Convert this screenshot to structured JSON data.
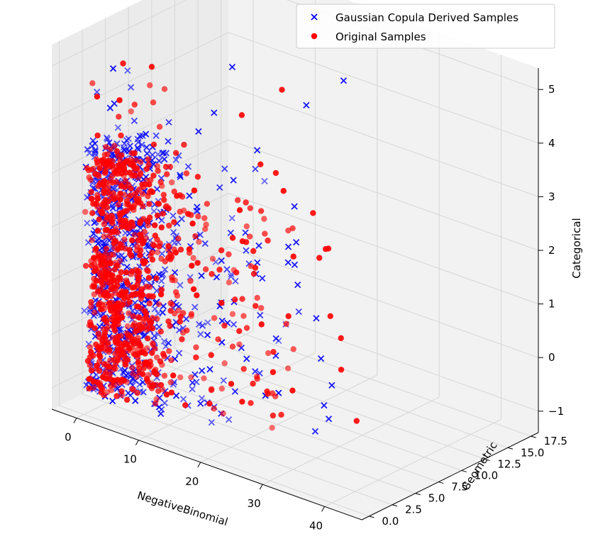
{
  "chart_data": {
    "type": "scatter",
    "projection": "3d",
    "grid": true,
    "legend_placement": "top-right",
    "xlabel": "NegativeBinomial",
    "ylabel": "Geometric",
    "zlabel": "Categorical",
    "xlim": [
      -4,
      46
    ],
    "ylim": [
      -0.8,
      18.3
    ],
    "zlim": [
      -1.4,
      5.4
    ],
    "x_ticks": [
      0,
      10,
      20,
      30,
      40
    ],
    "x_tick_labels": [
      "0",
      "10",
      "20",
      "30",
      "40"
    ],
    "y_ticks": [
      0,
      2.5,
      5,
      7.5,
      10,
      12.5,
      15,
      17.5
    ],
    "y_tick_labels": [
      "0.0",
      "2.5",
      "5.0",
      "7.5",
      "10.0",
      "12.5",
      "15.0",
      "17.5"
    ],
    "z_ticks": [
      -1,
      0,
      1,
      2,
      3,
      4,
      5
    ],
    "z_tick_labels": [
      "−1",
      "0",
      "1",
      "2",
      "3",
      "4",
      "5"
    ],
    "series": [
      {
        "name": "Gaussian Copula Derived Samples",
        "marker": "x",
        "color": "#0000ff",
        "distribution": {
          "x_range": [
            0,
            42
          ],
          "x_mode": 6,
          "y_range": [
            0,
            18
          ],
          "y_mode": 1,
          "z_range": [
            -1,
            5.3
          ]
        },
        "points": [
          [
            38,
            1,
            0
          ],
          [
            37,
            2,
            0.5
          ],
          [
            36,
            1.5,
            1
          ],
          [
            35,
            2.5,
            0
          ],
          [
            33,
            3,
            1.5
          ],
          [
            30,
            3,
            2
          ],
          [
            25,
            6,
            3
          ],
          [
            21,
            14,
            4.5
          ],
          [
            12,
            16,
            3.5
          ],
          [
            9,
            10,
            4.6
          ],
          [
            14,
            3,
            4.2
          ],
          [
            18,
            2,
            4.8
          ],
          [
            16,
            1.5,
            3
          ],
          [
            8,
            2,
            3.5
          ],
          [
            27,
            4,
            2.5
          ],
          [
            28,
            2,
            1
          ],
          [
            24,
            1.5,
            0.5
          ],
          [
            22,
            4,
            2
          ],
          [
            31,
            2,
            2.5
          ],
          [
            19,
            6,
            3.8
          ]
        ]
      },
      {
        "name": "Original Samples",
        "marker": "o",
        "color": "#ff0000",
        "distribution": {
          "x_range": [
            0,
            42
          ],
          "x_mode": 6,
          "y_range": [
            0,
            17
          ],
          "y_mode": 1,
          "z_range": [
            -1,
            5
          ]
        },
        "points": [
          [
            40,
            1,
            1
          ],
          [
            41,
            2,
            0
          ],
          [
            39,
            0.5,
            2
          ],
          [
            36,
            2,
            3
          ],
          [
            32,
            4,
            2.5
          ],
          [
            28,
            6,
            3
          ],
          [
            20,
            8,
            4.8
          ],
          [
            22,
            6,
            3.5
          ],
          [
            26,
            9,
            2
          ],
          [
            30,
            2,
            1.5
          ],
          [
            24,
            3,
            4
          ],
          [
            18,
            5,
            4.5
          ],
          [
            12,
            2,
            3
          ],
          [
            34,
            5,
            1
          ],
          [
            29,
            1,
            0.5
          ]
        ]
      }
    ]
  }
}
